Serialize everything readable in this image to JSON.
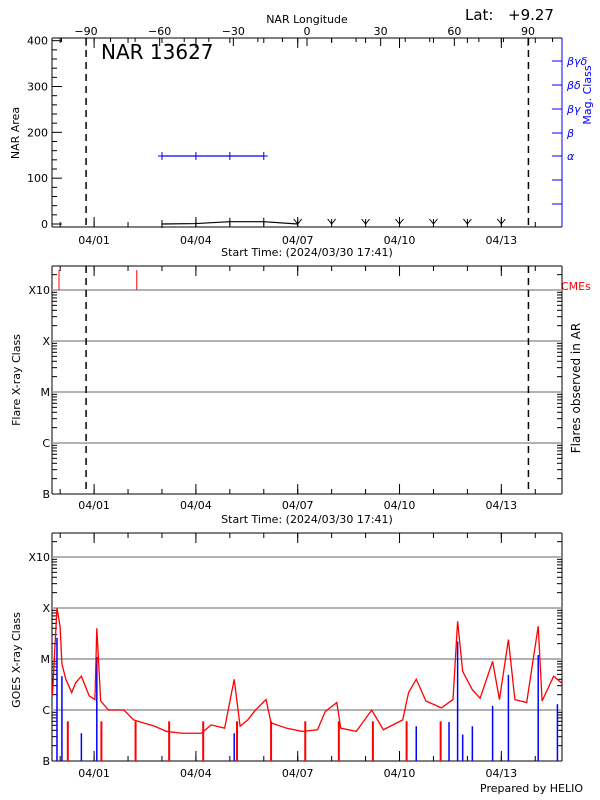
{
  "time_axis": {
    "label": "Start Time: (2024/03/30 17:41)",
    "ticks": [
      {
        "label": "04/01",
        "time": "2024-04-01T00:00"
      },
      {
        "label": "04/04",
        "time": "2024-04-04T00:00"
      },
      {
        "label": "04/07",
        "time": "2024-04-07T00:00"
      },
      {
        "label": "04/10",
        "time": "2024-04-10T00:00"
      },
      {
        "label": "04/13",
        "time": "2024-04-13T00:00"
      }
    ],
    "range": [
      "2024-03-30T17:41",
      "2024-04-14T18:40"
    ]
  },
  "footer": "Prepared by HELIO",
  "colors": {
    "goes_long": "#ff0000",
    "goes_short": "#0000ff",
    "mag_class": "#0000ff",
    "cme": "#ff0000",
    "grid": "#999999"
  },
  "chart_data": [
    {
      "type": "line",
      "title": "NAR 13627",
      "lat_label": "Lat:",
      "lat_value": "+9.27",
      "ylabel": "NAR Area",
      "ylim": [
        0,
        400
      ],
      "yticks": [
        0,
        100,
        200,
        300,
        400
      ],
      "x2label": "NAR Longitude",
      "x2_ticks": [
        -90,
        -60,
        -30,
        0,
        30,
        60,
        90
      ],
      "x2_range": [
        -103,
        104
      ],
      "y2label": "Mag. Class",
      "y2_ticks": [
        "α",
        "β",
        "βγ",
        "βδ",
        "βγδ"
      ],
      "limb_lines": [
        "2024-03-31T18:20",
        "2024-04-13T19:10"
      ],
      "area": [
        {
          "time": "2024-04-03T00:00",
          "value": 0
        },
        {
          "time": "2024-04-04T00:00",
          "value": 1
        },
        {
          "time": "2024-04-05T00:00",
          "value": 5
        },
        {
          "time": "2024-04-06T00:00",
          "value": 5
        },
        {
          "time": "2024-04-07T00:00",
          "value": 0
        }
      ],
      "mag_class": [
        {
          "time": "2024-04-03T00:00",
          "class": "α"
        },
        {
          "time": "2024-04-04T00:00",
          "class": "α"
        },
        {
          "time": "2024-04-05T00:00",
          "class": "α"
        },
        {
          "time": "2024-04-06T00:00",
          "class": "α"
        }
      ],
      "predicted_markers": [
        "2024-04-07T00:00",
        "2024-04-08T00:00",
        "2024-04-09T00:00",
        "2024-04-10T00:00",
        "2024-04-11T00:00",
        "2024-04-12T00:00",
        "2024-04-13T00:00"
      ]
    },
    {
      "type": "scatter",
      "ylabel": "Flare X-ray Class",
      "y2label": "Flares observed in AR",
      "yscale": "log",
      "ylim": [
        1e-07,
        0.003
      ],
      "ytick_labels": [
        "B",
        "C",
        "M",
        "X",
        "X10"
      ],
      "grid": true,
      "flares": [],
      "cme_label": "CMEs",
      "cmes": [
        "2024-03-30T23:10",
        "2024-04-02T06:10"
      ],
      "limb_lines": [
        "2024-03-31T18:20",
        "2024-04-13T19:10"
      ]
    },
    {
      "type": "line",
      "ylabel": "GOES X-ray Class",
      "yscale": "log",
      "ylim": [
        1e-07,
        0.003
      ],
      "ytick_labels": [
        "B",
        "C",
        "M",
        "X",
        "X10"
      ],
      "grid": true,
      "series": [
        {
          "color": "#ff0000",
          "points": [
            [
              "2024-03-30T18:30",
              1.9e-06
            ],
            [
              "2024-03-30T21:45",
              0.0001
            ],
            [
              "2024-03-30T23:55",
              4.4e-05
            ],
            [
              "2024-03-31T01:15",
              8e-06
            ],
            [
              "2024-03-31T04:00",
              4e-06
            ],
            [
              "2024-03-31T08:10",
              2.2e-06
            ],
            [
              "2024-03-31T10:55",
              3.4e-06
            ],
            [
              "2024-03-31T15:00",
              4.6e-06
            ],
            [
              "2024-03-31T20:30",
              1.9e-06
            ],
            [
              "2024-04-01T00:35",
              1.6e-06
            ],
            [
              "2024-04-01T01:55",
              4e-05
            ],
            [
              "2024-04-01T04:40",
              1.5e-06
            ],
            [
              "2024-04-01T10:10",
              1e-06
            ],
            [
              "2024-04-01T21:05",
              1e-06
            ],
            [
              "2024-04-02T04:00",
              6.4e-07
            ],
            [
              "2024-04-02T10:50",
              5.6e-07
            ],
            [
              "2024-04-02T19:00",
              4.8e-07
            ],
            [
              "2024-04-03T03:10",
              3.8e-07
            ],
            [
              "2024-04-03T14:10",
              3.5e-07
            ],
            [
              "2024-04-04T03:55",
              3.5e-07
            ],
            [
              "2024-04-04T10:45",
              5.1e-07
            ],
            [
              "2024-04-04T20:20",
              4.4e-07
            ],
            [
              "2024-04-05T03:05",
              4e-06
            ],
            [
              "2024-04-05T07:15",
              4.8e-07
            ],
            [
              "2024-04-05T12:40",
              6.4e-07
            ],
            [
              "2024-04-05T18:10",
              1e-06
            ],
            [
              "2024-04-06T01:35",
              1.6e-06
            ],
            [
              "2024-04-06T05:10",
              5.6e-07
            ],
            [
              "2024-04-06T16:05",
              4.4e-07
            ],
            [
              "2024-04-07T03:05",
              3.8e-07
            ],
            [
              "2024-04-07T14:00",
              4.1e-07
            ],
            [
              "2024-04-07T19:30",
              9.4e-07
            ],
            [
              "2024-04-08T03:40",
              1.4e-06
            ],
            [
              "2024-04-08T06:25",
              4.4e-07
            ],
            [
              "2024-04-08T17:25",
              3.8e-07
            ],
            [
              "2024-04-09T04:20",
              1e-06
            ],
            [
              "2024-04-09T12:35",
              4.1e-07
            ],
            [
              "2024-04-10T02:15",
              6.4e-07
            ],
            [
              "2024-04-10T06:25",
              2.2e-06
            ],
            [
              "2024-04-10T11:50",
              4e-06
            ],
            [
              "2024-04-10T18:40",
              1.5e-06
            ],
            [
              "2024-04-11T05:35",
              1.1e-06
            ],
            [
              "2024-04-11T13:50",
              1.6e-06
            ],
            [
              "2024-04-11T17:05",
              5.5e-05
            ],
            [
              "2024-04-11T20:40",
              5.7e-06
            ],
            [
              "2024-04-12T03:30",
              2.5e-06
            ],
            [
              "2024-04-12T09:00",
              1.7e-06
            ],
            [
              "2024-04-12T17:50",
              9e-06
            ],
            [
              "2024-04-12T22:40",
              1.6e-06
            ],
            [
              "2024-04-13T05:00",
              2.4e-05
            ],
            [
              "2024-04-13T09:35",
              1.6e-06
            ],
            [
              "2024-04-13T17:55",
              1.4e-06
            ],
            [
              "2024-04-14T02:05",
              4.4e-05
            ],
            [
              "2024-04-14T04:50",
              1.5e-06
            ],
            [
              "2024-04-14T13:00",
              4.6e-06
            ],
            [
              "2024-04-14T18:30",
              3.4e-06
            ]
          ],
          "dropouts": [
            "2024-03-31T05:25",
            "2024-04-01T05:10",
            "2024-04-02T05:20",
            "2024-04-03T05:05",
            "2024-04-04T05:10",
            "2024-04-05T05:05",
            "2024-04-06T05:10",
            "2024-04-07T05:20",
            "2024-04-08T05:05",
            "2024-04-09T05:10",
            "2024-04-10T05:00",
            "2024-04-11T05:05"
          ]
        },
        {
          "color": "#0000ff",
          "points": [
            [
              "2024-03-30T21:45",
              2.6e-05
            ],
            [
              "2024-03-31T01:15",
              4.6e-06
            ],
            [
              "2024-03-31T15:00",
              3.5e-07
            ],
            [
              "2024-04-01T01:55",
              1.1e-05
            ],
            [
              "2024-04-05T03:05",
              3.5e-07
            ],
            [
              "2024-04-10T11:50",
              4.8e-07
            ],
            [
              "2024-04-11T11:00",
              5.8e-07
            ],
            [
              "2024-04-11T17:05",
              2.2e-05
            ],
            [
              "2024-04-11T20:40",
              3.3e-07
            ],
            [
              "2024-04-12T03:30",
              4.8e-07
            ],
            [
              "2024-04-12T17:50",
              1.2e-06
            ],
            [
              "2024-04-13T05:00",
              4.9e-06
            ],
            [
              "2024-04-14T02:05",
              1.2e-05
            ],
            [
              "2024-04-14T15:40",
              1.3e-06
            ]
          ]
        }
      ]
    }
  ]
}
